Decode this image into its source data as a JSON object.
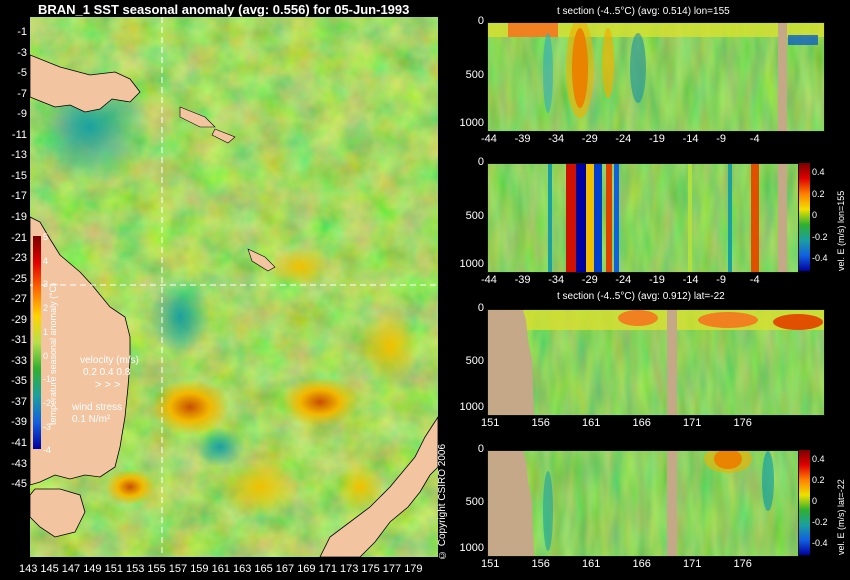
{
  "map": {
    "title": "BRAN_1 SST seasonal anomaly (avg: 0.556) for 05-Jun-1993",
    "lat_ticks": [
      "-1",
      "-3",
      "-5",
      "-7",
      "-9",
      "-11",
      "-13",
      "-15",
      "-17",
      "-19",
      "-21",
      "-23",
      "-25",
      "-27",
      "-29",
      "-31",
      "-33",
      "-35",
      "-37",
      "-39",
      "-41",
      "-43",
      "-45"
    ],
    "lon_ticks": [
      "143",
      "145",
      "147",
      "149",
      "151",
      "153",
      "155",
      "157",
      "159",
      "161",
      "163",
      "165",
      "167",
      "169",
      "171",
      "173",
      "175",
      "177",
      "179"
    ],
    "colorbar": {
      "ticks": [
        "5",
        "4",
        "3",
        "2",
        "1",
        "0",
        "-1",
        "-2",
        "-3",
        "-4"
      ],
      "label": "temperature seasonal anomaly (°C)"
    },
    "velocity_legend": {
      "label": "velocity (m/s)",
      "scale": "0.2 0.4 0.8"
    },
    "wind_legend": {
      "label": "wind stress",
      "scale": "0.1 N/m²"
    },
    "crosshair": {
      "lon": 155,
      "lat": -22
    }
  },
  "panels": [
    {
      "title": "t section (-4..5°C) (avg: 0.514) lon=155",
      "y_ticks": [
        "0",
        "500",
        "1000"
      ],
      "x_ticks": [
        "-44",
        "-39",
        "-34",
        "-29",
        "-24",
        "-19",
        "-14",
        "-9",
        "-4"
      ]
    },
    {
      "title": "",
      "y_ticks": [
        "0",
        "500",
        "1000"
      ],
      "x_ticks": [
        "-44",
        "-39",
        "-34",
        "-29",
        "-24",
        "-19",
        "-14",
        "-9",
        "-4"
      ],
      "colorbar": {
        "ticks": [
          "0.4",
          "0.2",
          "0",
          "-0.2",
          "-0.4"
        ],
        "label": "vel. E (m/s) lon=155"
      }
    },
    {
      "title": "t section (-4..5°C) (avg: 0.912) lat=-22",
      "y_ticks": [
        "0",
        "500",
        "1000"
      ],
      "x_ticks": [
        "151",
        "156",
        "161",
        "166",
        "171",
        "176"
      ]
    },
    {
      "title": "",
      "y_ticks": [
        "0",
        "500",
        "1000"
      ],
      "x_ticks": [
        "151",
        "156",
        "161",
        "166",
        "171",
        "176"
      ],
      "colorbar": {
        "ticks": [
          "0.4",
          "0.2",
          "0",
          "-0.2",
          "-0.4"
        ],
        "label": "vel. E (m/s) lat=-22"
      }
    }
  ],
  "copyright": "© Copyright CSIRO 2006",
  "chart_data": [
    {
      "type": "heatmap",
      "title": "BRAN_1 SST seasonal anomaly (avg: 0.556) for 05-Jun-1993",
      "x_range": [
        142,
        180
      ],
      "y_range": [
        -45,
        0
      ],
      "colorbar_range": [
        -4,
        5
      ],
      "colorbar_label": "temperature seasonal anomaly (°C)",
      "crosshair": {
        "lon": 155,
        "lat": -22
      }
    },
    {
      "type": "heatmap",
      "title": "t section (-4..5°C) (avg: 0.514) lon=155",
      "x_range": [
        -45,
        -1
      ],
      "y_range": [
        1000,
        0
      ]
    },
    {
      "type": "heatmap",
      "x_range": [
        -45,
        -1
      ],
      "y_range": [
        1000,
        0
      ],
      "colorbar_range": [
        -0.4,
        0.4
      ],
      "colorbar_label": "vel. E (m/s) lon=155"
    },
    {
      "type": "heatmap",
      "title": "t section (-4..5°C) (avg: 0.912) lat=-22",
      "x_range": [
        150,
        180
      ],
      "y_range": [
        1000,
        0
      ]
    },
    {
      "type": "heatmap",
      "x_range": [
        150,
        180
      ],
      "y_range": [
        1000,
        0
      ],
      "colorbar_range": [
        -0.4,
        0.4
      ],
      "colorbar_label": "vel. E (m/s) lat=-22"
    }
  ]
}
